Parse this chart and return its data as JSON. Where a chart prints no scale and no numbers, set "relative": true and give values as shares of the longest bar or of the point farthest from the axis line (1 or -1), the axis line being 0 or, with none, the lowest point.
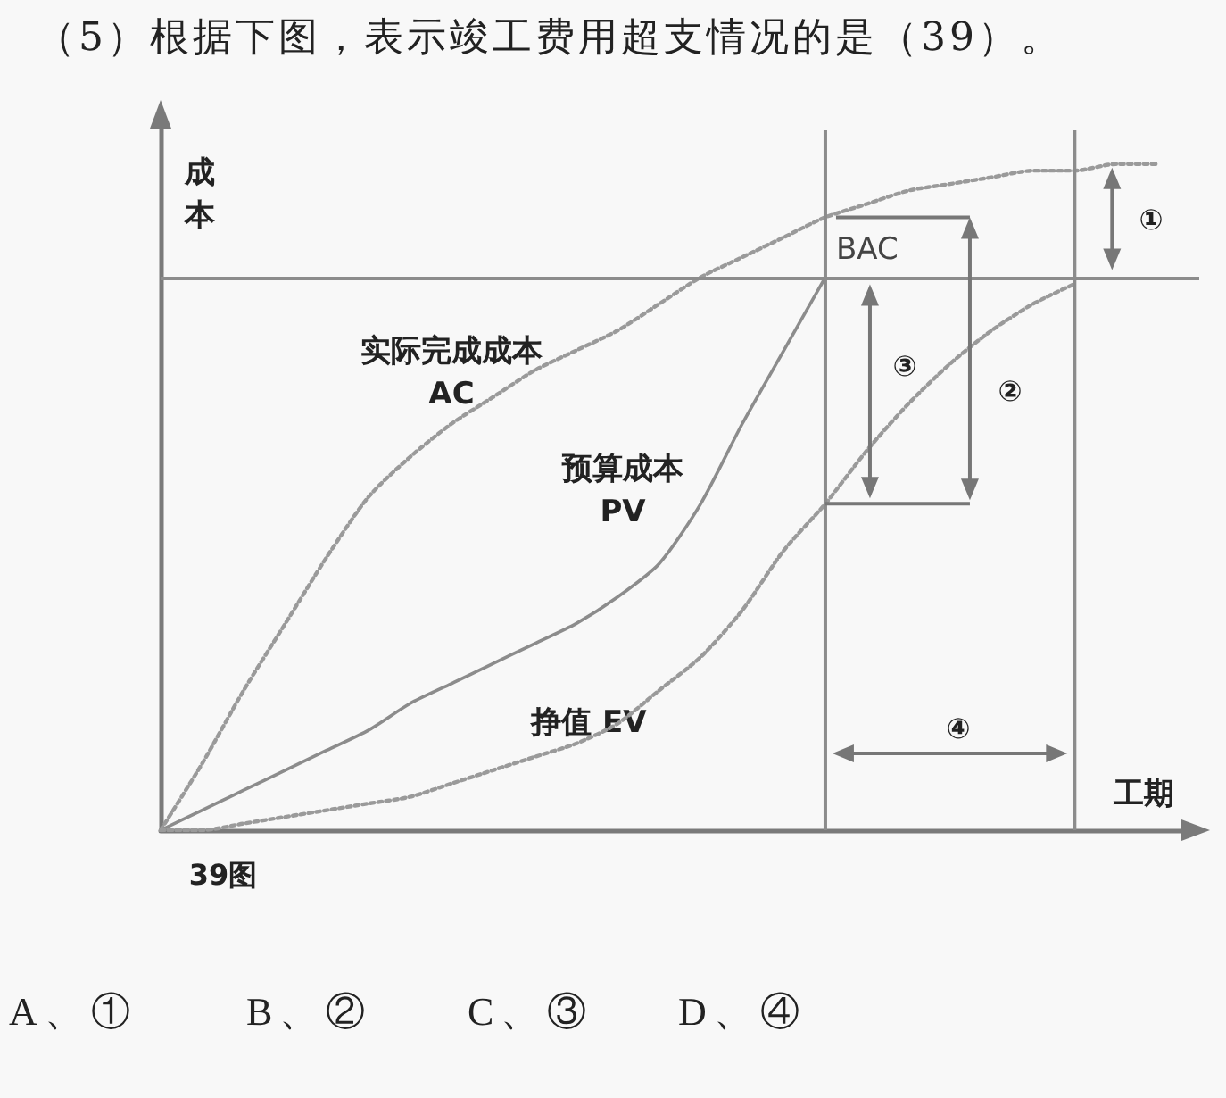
{
  "chart_data": {
    "type": "line",
    "title": "（5）根据下图，表示竣工费用超支情况的是（39）。",
    "xlabel": "工期",
    "ylabel": "成本",
    "relative": true,
    "grid": false,
    "legend": false,
    "marker": "none",
    "categories": [
      null,
      null,
      null,
      null,
      null,
      null,
      null,
      null,
      null,
      null,
      null,
      null,
      null,
      null,
      null,
      null,
      null,
      null,
      null,
      null,
      null,
      null,
      null,
      null,
      null,
      null
    ],
    "series": [
      {
        "name": "实际完成成本\nAC",
        "color": "#9a9a9a",
        "line_style": "dotted",
        "values": [
          0,
          0.1,
          0.21,
          0.31,
          0.41,
          0.5,
          0.56,
          0.61,
          0.65,
          0.69,
          0.72,
          0.75,
          0.79,
          0.83,
          0.86,
          0.89,
          0.92,
          0.94,
          0.96,
          0.97,
          0.98,
          0.99,
          0.99,
          1,
          1,
          null
        ]
      },
      {
        "name": "预算成本\nPV",
        "color": "#8c8c8c",
        "line_style": "solid",
        "values": [
          0,
          0.03,
          0.06,
          0.09,
          0.12,
          0.15,
          0.19,
          0.22,
          0.25,
          0.28,
          0.31,
          0.35,
          0.4,
          0.49,
          0.61,
          0.72,
          0.83,
          null,
          null,
          null,
          null,
          null,
          null,
          null,
          null,
          null
        ]
      },
      {
        "name": "挣值 EV",
        "color": "#9a9a9a",
        "line_style": "dotted",
        "values": [
          0,
          0.0,
          0.01,
          0.02,
          0.03,
          0.04,
          0.05,
          0.07,
          0.09,
          0.11,
          0.13,
          0.16,
          0.21,
          0.26,
          0.33,
          0.42,
          0.49,
          0.57,
          0.64,
          0.7,
          0.75,
          0.79,
          0.82,
          null,
          null,
          null
        ]
      }
    ],
    "ref_lines": [
      {
        "axis": "y",
        "value": 0.83,
        "label": "BAC",
        "color": "#8c8c8c"
      }
    ],
    "annotations": [
      "①",
      "②",
      "③",
      "④",
      "39图",
      "A、①",
      "B、②",
      "C、③",
      "D、④"
    ]
  }
}
